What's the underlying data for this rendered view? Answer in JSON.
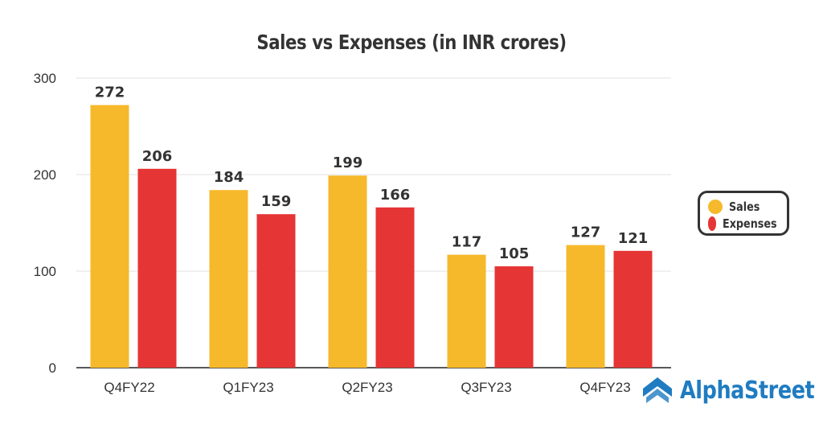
{
  "chart_data": {
    "type": "bar",
    "title": "Sales vs Expenses (in INR crores)",
    "categories": [
      "Q4FY22",
      "Q1FY23",
      "Q2FY23",
      "Q3FY23",
      "Q4FY23"
    ],
    "series": [
      {
        "name": "Sales",
        "color": "#f6b92b",
        "values": [
          272,
          184,
          199,
          117,
          127
        ]
      },
      {
        "name": "Expenses",
        "color": "#e53535",
        "values": [
          206,
          159,
          166,
          105,
          121
        ]
      }
    ],
    "ylim": [
      0,
      300
    ],
    "yticks": [
      0,
      100,
      200,
      300
    ],
    "grid": true,
    "legend": "right",
    "xlabel": "",
    "ylabel": ""
  },
  "brand": {
    "name": "AlphaStreet",
    "color": "#1f7cc1"
  }
}
